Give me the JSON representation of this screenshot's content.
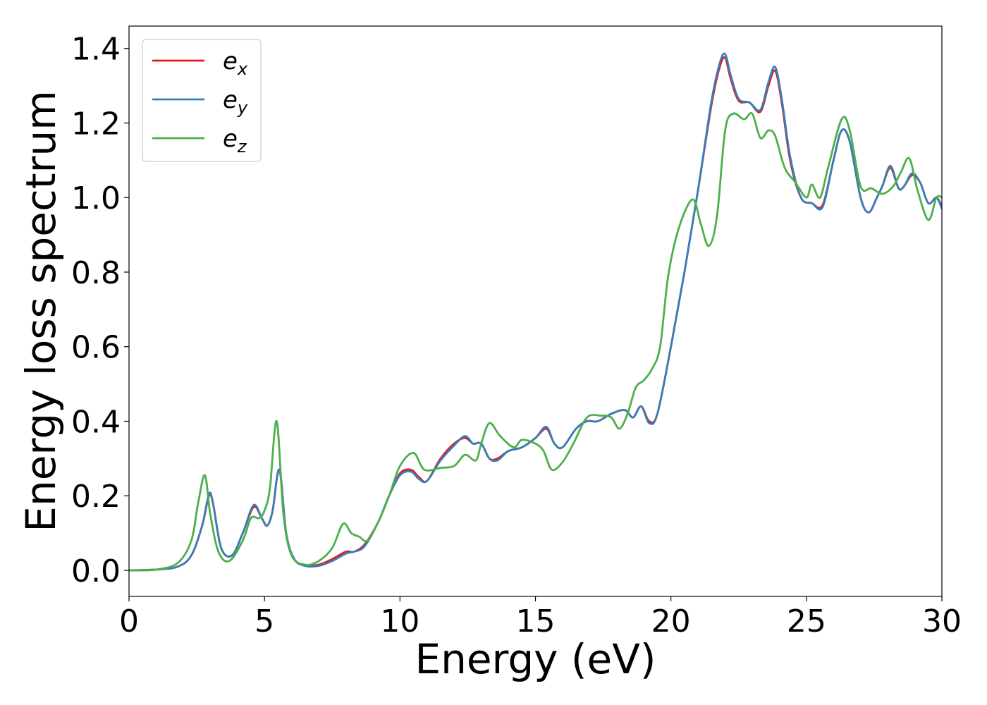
{
  "chart_data": {
    "type": "line",
    "title": "",
    "xlabel": "Energy (eV)",
    "ylabel": "Energy loss spectrum",
    "xlim": [
      0,
      30
    ],
    "ylim": [
      -0.07,
      1.46
    ],
    "xticks": [
      0,
      5,
      10,
      15,
      20,
      25,
      30
    ],
    "xtick_labels": [
      "0",
      "5",
      "10",
      "15",
      "20",
      "25",
      "30"
    ],
    "yticks": [
      0.0,
      0.2,
      0.4,
      0.6,
      0.8,
      1.0,
      1.2,
      1.4
    ],
    "ytick_labels": [
      "0.0",
      "0.2",
      "0.4",
      "0.6",
      "0.8",
      "1.0",
      "1.2",
      "1.4"
    ],
    "grid": false,
    "legend_position": "top-left",
    "series": [
      {
        "name": "ex",
        "legend_base": "e",
        "legend_sub": "x",
        "color": "#e41a1c",
        "x": [
          0,
          1,
          1.8,
          2.3,
          2.7,
          2.95,
          3.1,
          3.4,
          3.8,
          4.2,
          4.6,
          4.9,
          5.1,
          5.3,
          5.55,
          5.8,
          6.1,
          6.5,
          7,
          7.5,
          8,
          8.3,
          8.7,
          9.2,
          9.6,
          10,
          10.4,
          10.7,
          11,
          11.5,
          12,
          12.4,
          12.7,
          13,
          13.3,
          13.6,
          14,
          14.5,
          15,
          15.4,
          15.7,
          16,
          16.5,
          16.9,
          17.3,
          17.8,
          18.3,
          18.6,
          18.9,
          19.2,
          19.5,
          20,
          20.5,
          21,
          21.5,
          21.8,
          22,
          22.2,
          22.5,
          22.9,
          23.3,
          23.6,
          23.85,
          24.1,
          24.4,
          24.8,
          25.2,
          25.6,
          26,
          26.3,
          26.6,
          27,
          27.3,
          27.6,
          27.8,
          28.1,
          28.4,
          28.6,
          28.9,
          29.2,
          29.5,
          29.8,
          30
        ],
        "y": [
          0.0,
          0.002,
          0.01,
          0.04,
          0.12,
          0.2,
          0.18,
          0.06,
          0.04,
          0.1,
          0.17,
          0.14,
          0.12,
          0.16,
          0.27,
          0.1,
          0.03,
          0.015,
          0.015,
          0.03,
          0.05,
          0.05,
          0.07,
          0.13,
          0.2,
          0.26,
          0.27,
          0.25,
          0.24,
          0.3,
          0.34,
          0.355,
          0.34,
          0.34,
          0.3,
          0.3,
          0.32,
          0.33,
          0.355,
          0.38,
          0.34,
          0.33,
          0.38,
          0.4,
          0.4,
          0.42,
          0.43,
          0.41,
          0.44,
          0.4,
          0.42,
          0.6,
          0.8,
          1.02,
          1.25,
          1.35,
          1.375,
          1.32,
          1.26,
          1.255,
          1.23,
          1.3,
          1.34,
          1.25,
          1.1,
          1.0,
          0.985,
          0.98,
          1.1,
          1.18,
          1.15,
          1.0,
          0.96,
          1.0,
          1.03,
          1.08,
          1.025,
          1.03,
          1.06,
          1.04,
          0.985,
          1.0,
          0.975
        ]
      },
      {
        "name": "ey",
        "legend_base": "e",
        "legend_sub": "y",
        "color": "#377eb8",
        "x": [
          0,
          1,
          1.8,
          2.3,
          2.7,
          2.95,
          3.1,
          3.4,
          3.8,
          4.2,
          4.6,
          4.9,
          5.1,
          5.3,
          5.55,
          5.8,
          6.1,
          6.5,
          7,
          7.5,
          8,
          8.3,
          8.7,
          9.2,
          9.6,
          10,
          10.4,
          10.7,
          11,
          11.5,
          12,
          12.4,
          12.7,
          13,
          13.3,
          13.6,
          14,
          14.5,
          15,
          15.4,
          15.7,
          16,
          16.5,
          16.9,
          17.3,
          17.8,
          18.3,
          18.6,
          18.9,
          19.2,
          19.5,
          20,
          20.5,
          21,
          21.5,
          21.8,
          22,
          22.2,
          22.5,
          22.9,
          23.3,
          23.6,
          23.85,
          24.1,
          24.4,
          24.8,
          25.2,
          25.6,
          26,
          26.3,
          26.6,
          27,
          27.3,
          27.6,
          27.8,
          28.1,
          28.4,
          28.6,
          28.9,
          29.2,
          29.5,
          29.8,
          30
        ],
        "y": [
          0.0,
          0.002,
          0.01,
          0.04,
          0.12,
          0.205,
          0.18,
          0.06,
          0.04,
          0.1,
          0.175,
          0.14,
          0.12,
          0.16,
          0.27,
          0.1,
          0.03,
          0.012,
          0.012,
          0.025,
          0.045,
          0.05,
          0.065,
          0.13,
          0.2,
          0.255,
          0.265,
          0.245,
          0.24,
          0.295,
          0.335,
          0.36,
          0.34,
          0.34,
          0.3,
          0.295,
          0.32,
          0.33,
          0.355,
          0.385,
          0.34,
          0.33,
          0.38,
          0.4,
          0.4,
          0.42,
          0.43,
          0.41,
          0.44,
          0.395,
          0.42,
          0.6,
          0.8,
          1.02,
          1.26,
          1.36,
          1.385,
          1.33,
          1.265,
          1.255,
          1.235,
          1.31,
          1.35,
          1.26,
          1.11,
          1.0,
          0.985,
          0.975,
          1.1,
          1.18,
          1.15,
          1.0,
          0.96,
          1.0,
          1.03,
          1.085,
          1.025,
          1.03,
          1.065,
          1.04,
          0.985,
          1.0,
          0.97
        ]
      },
      {
        "name": "ez",
        "legend_base": "e",
        "legend_sub": "z",
        "color": "#4daf4a",
        "x": [
          0,
          1,
          1.8,
          2.3,
          2.55,
          2.8,
          3.0,
          3.3,
          3.7,
          4.2,
          4.5,
          4.8,
          5.0,
          5.2,
          5.45,
          5.7,
          6.0,
          6.5,
          7,
          7.5,
          7.9,
          8.2,
          8.5,
          8.8,
          9.2,
          9.6,
          10,
          10.5,
          10.9,
          11.5,
          12,
          12.4,
          12.8,
          13,
          13.3,
          13.7,
          14.2,
          14.5,
          15,
          15.3,
          15.6,
          16,
          16.4,
          16.9,
          17.4,
          17.8,
          18.1,
          18.4,
          18.7,
          19.0,
          19.3,
          19.6,
          19.9,
          20.3,
          20.8,
          21.1,
          21.4,
          21.7,
          22.0,
          22.3,
          22.7,
          23.0,
          23.3,
          23.6,
          23.85,
          24.2,
          24.6,
          25.0,
          25.2,
          25.5,
          25.8,
          26.3,
          26.6,
          27.0,
          27.4,
          27.8,
          28.2,
          28.5,
          28.8,
          29.1,
          29.5,
          29.8,
          30
        ],
        "y": [
          0.0,
          0.002,
          0.02,
          0.08,
          0.18,
          0.255,
          0.15,
          0.05,
          0.025,
          0.08,
          0.14,
          0.14,
          0.16,
          0.22,
          0.4,
          0.15,
          0.04,
          0.015,
          0.025,
          0.06,
          0.125,
          0.1,
          0.09,
          0.08,
          0.13,
          0.2,
          0.28,
          0.315,
          0.27,
          0.275,
          0.28,
          0.31,
          0.295,
          0.34,
          0.395,
          0.36,
          0.33,
          0.35,
          0.34,
          0.32,
          0.27,
          0.29,
          0.34,
          0.41,
          0.415,
          0.41,
          0.38,
          0.42,
          0.49,
          0.51,
          0.54,
          0.6,
          0.79,
          0.92,
          0.995,
          0.93,
          0.87,
          0.95,
          1.18,
          1.225,
          1.21,
          1.225,
          1.16,
          1.18,
          1.165,
          1.08,
          1.04,
          1.0,
          1.035,
          1.0,
          1.08,
          1.21,
          1.18,
          1.03,
          1.025,
          1.01,
          1.03,
          1.07,
          1.105,
          1.02,
          0.94,
          1.0,
          1.0
        ]
      }
    ]
  }
}
